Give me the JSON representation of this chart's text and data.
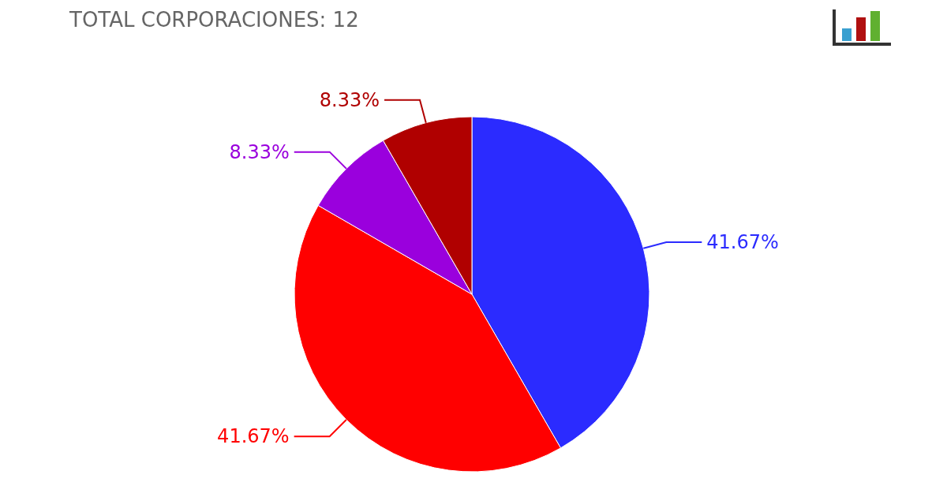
{
  "chart_data": {
    "type": "pie",
    "title": "TOTAL CORPORACIONES: 12",
    "categories": [
      null,
      null,
      null,
      null
    ],
    "values": [
      41.67,
      41.67,
      8.33,
      8.33
    ],
    "colors": [
      "#2b2bff",
      "#ff0000",
      "#9a00dd",
      "#b00000"
    ],
    "value_labels": [
      "41.67%",
      "41.67%",
      "8.33%",
      "8.33%"
    ]
  }
}
